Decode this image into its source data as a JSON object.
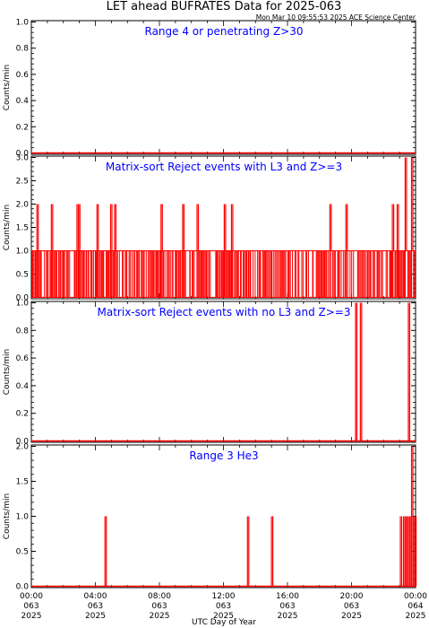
{
  "header": {
    "title": "LET ahead BUFRATES Data for 2025-063",
    "timestamp": "Mon Mar 10 09:55:53 2025 ACE Science Center"
  },
  "chart_data": [
    {
      "type": "line",
      "title": "Range 4 or  penetrating Z>30",
      "ylabel": "Counts/min",
      "ylim": [
        0,
        1
      ],
      "yticks": [
        "0.0",
        "0.2",
        "0.4",
        "0.6",
        "0.8",
        "1.0"
      ],
      "color": "#ff0000",
      "xrange_hours": [
        0,
        24
      ],
      "baseline": 0,
      "spikes": []
    },
    {
      "type": "line",
      "title": "Matrix-sort Reject events with L3 and Z>=3",
      "ylabel": "Counts/min",
      "ylim": [
        0,
        3
      ],
      "yticks": [
        "0.0",
        "0.5",
        "1.0",
        "1.5",
        "2.0",
        "2.5",
        "3.0"
      ],
      "color": "#ff0000",
      "xrange_hours": [
        0,
        24
      ],
      "dense": {
        "from": 0,
        "to": 24,
        "level": 1
      },
      "spikes": [
        {
          "t": 0.35,
          "v": 2
        },
        {
          "t": 1.25,
          "v": 2
        },
        {
          "t": 4.1,
          "v": 2
        },
        {
          "t": 2.85,
          "v": 2
        },
        {
          "t": 2.95,
          "v": 2
        },
        {
          "t": 4.95,
          "v": 2
        },
        {
          "t": 5.2,
          "v": 2
        },
        {
          "t": 8.1,
          "v": 2
        },
        {
          "t": 9.45,
          "v": 2
        },
        {
          "t": 10.35,
          "v": 2
        },
        {
          "t": 12.05,
          "v": 2
        },
        {
          "t": 12.5,
          "v": 2
        },
        {
          "t": 18.65,
          "v": 2
        },
        {
          "t": 19.65,
          "v": 2
        },
        {
          "t": 22.55,
          "v": 2
        },
        {
          "t": 22.85,
          "v": 2
        },
        {
          "t": 23.35,
          "v": 3
        },
        {
          "t": 23.75,
          "v": 3
        }
      ]
    },
    {
      "type": "line",
      "title": "Matrix-sort Reject events with no L3 and Z>=3",
      "ylabel": "Counts/min",
      "ylim": [
        0,
        1
      ],
      "yticks": [
        "0.0",
        "0.2",
        "0.4",
        "0.6",
        "0.8",
        "1.0"
      ],
      "color": "#ff0000",
      "xrange_hours": [
        0,
        24
      ],
      "baseline": 0,
      "spikes": [
        {
          "t": 20.25,
          "v": 1
        },
        {
          "t": 20.55,
          "v": 1
        },
        {
          "t": 23.55,
          "v": 1
        }
      ]
    },
    {
      "type": "line",
      "title": "Range 3 He3",
      "ylabel": "Counts/min",
      "ylim": [
        0,
        2
      ],
      "yticks": [
        "0.0",
        "0.5",
        "1.0",
        "1.5",
        "2.0"
      ],
      "color": "#ff0000",
      "xrange_hours": [
        0,
        24
      ],
      "baseline": 0,
      "spikes": [
        {
          "t": 4.6,
          "v": 1
        },
        {
          "t": 13.5,
          "v": 1
        },
        {
          "t": 15.0,
          "v": 1
        },
        {
          "t": 23.05,
          "v": 1
        },
        {
          "t": 23.25,
          "v": 1
        },
        {
          "t": 23.4,
          "v": 1
        },
        {
          "t": 23.55,
          "v": 1
        },
        {
          "t": 23.65,
          "v": 1
        },
        {
          "t": 23.75,
          "v": 2
        },
        {
          "t": 23.85,
          "v": 1
        },
        {
          "t": 23.95,
          "v": 1
        }
      ]
    }
  ],
  "xaxis": {
    "label": "UTC Day of Year",
    "ticks": [
      {
        "time": "00:00",
        "doy": "063",
        "year": "2025"
      },
      {
        "time": "04:00",
        "doy": "063",
        "year": "2025"
      },
      {
        "time": "08:00",
        "doy": "063",
        "year": "2025"
      },
      {
        "time": "12:00",
        "doy": "063",
        "year": "2025"
      },
      {
        "time": "16:00",
        "doy": "063",
        "year": "2025"
      },
      {
        "time": "20:00",
        "doy": "063",
        "year": "2025"
      },
      {
        "time": "00:00",
        "doy": "064",
        "year": "2025"
      }
    ]
  }
}
